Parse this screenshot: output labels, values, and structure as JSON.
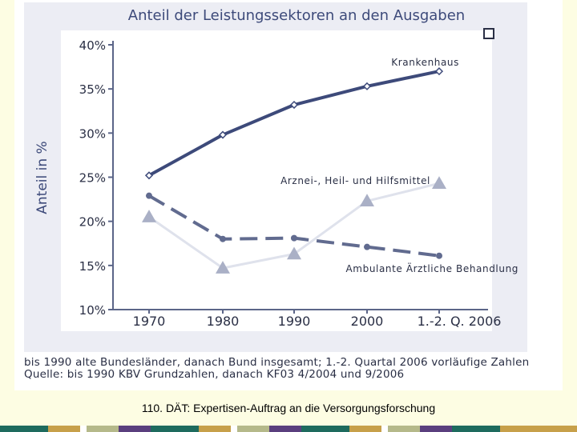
{
  "chart_data": {
    "type": "line",
    "title": "Anteil der Leistungssektoren an den Ausgaben",
    "ylabel": "Anteil in %",
    "xlabel": "",
    "categories": [
      "1970",
      "1980",
      "1990",
      "2000",
      "1.-2. Q. 2006"
    ],
    "y_ticks": [
      "10%",
      "15%",
      "20%",
      "25%",
      "30%",
      "35%",
      "40%"
    ],
    "ylim": [
      10,
      40
    ],
    "series": [
      {
        "name": "Krankenhaus",
        "values": [
          25.2,
          29.8,
          33.2,
          35.3,
          37.0
        ],
        "color": "#3d4a7a",
        "style": "solid",
        "marker": "diamond"
      },
      {
        "name": "Arznei-, Heil- und Hilfsmittel",
        "values": [
          20.5,
          14.7,
          16.3,
          22.3,
          24.3
        ],
        "color": "#dfe2ec",
        "style": "solid",
        "marker": "triangle",
        "marker_color": "#aab0c6"
      },
      {
        "name": "Ambulante Ärztliche Behandlung",
        "values": [
          22.9,
          18.0,
          18.1,
          17.1,
          16.1
        ],
        "color": "#616b8f",
        "style": "dashed",
        "marker": "circle"
      }
    ],
    "legend_placement": "inline"
  },
  "notes": {
    "line1": "bis 1990 alte Bundesländer, danach Bund insgesamt; 1.-2. Quartal 2006 vorläufige Zahlen",
    "line2": "Quelle: bis 1990 KBV Grundzahlen, danach KF03 4/2004 und 9/2006"
  },
  "caption": "110. DÄT: Expertisen-Auftrag an die Versorgungsforschung",
  "colors": {
    "slide_bg": "#fdfde3",
    "chart_bg": "#ecedf4",
    "plot_bg": "#ffffff",
    "axis": "#5b6588",
    "text": "#2a2f45"
  },
  "footer_colors": [
    "#1e6b5e",
    "#c7a04a",
    "#ffffff",
    "#b5b98a",
    "#5a3f7e",
    "#1e6b5e",
    "#c7a04a",
    "#ffffff",
    "#b5b98a",
    "#5a3f7e",
    "#1e6b5e",
    "#c7a04a",
    "#ffffff",
    "#b5b98a",
    "#5a3f7e",
    "#1e6b5e",
    "#c7a04a"
  ]
}
